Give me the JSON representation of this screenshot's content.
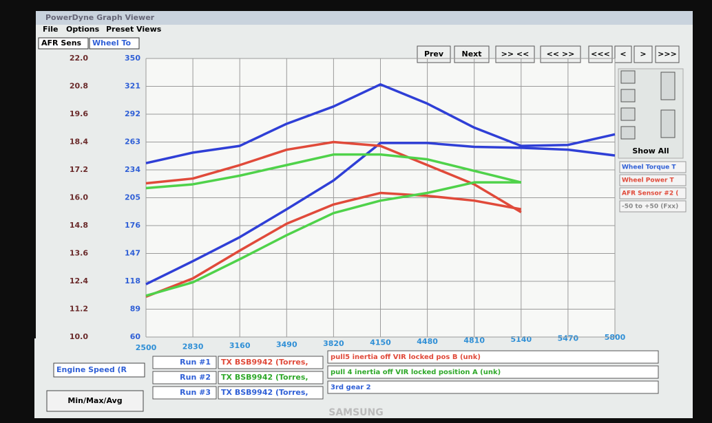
{
  "window": {
    "title": "PowerDyne Graph Viewer",
    "menu": [
      "File",
      "Options",
      "Preset Views"
    ],
    "tabs": [
      "AFR Sens",
      "Wheel To"
    ],
    "buttons": [
      "Prev",
      "Next",
      ">> <<",
      "<< >>",
      "<<<",
      "<",
      ">",
      ">>>"
    ],
    "show_all": "Show All",
    "legend": [
      "Wheel Torque T",
      "Wheel Power T",
      "AFR Sensor #2 (",
      "-50 to +50 (Fxx)"
    ],
    "x_axis_label": "Engine Speed (R",
    "mode": "Min/Max/Avg",
    "runs": [
      [
        "Run #1",
        "TX BSB9942 (Torres,",
        "pull5 inertia off VIR locked pos B (unk)"
      ],
      [
        "Run #2",
        "TX BSB9942 (Torres,",
        "pull 4 inertia off VIR locked position A (unk)"
      ],
      [
        "Run #3",
        "TX BSB9942 (Torres,",
        "3rd gear 2"
      ]
    ],
    "brand": "SAMSUNG"
  },
  "chart_data": {
    "type": "line",
    "x": [
      2500,
      2830,
      3160,
      3490,
      3820,
      4150,
      4480,
      4810,
      5140,
      5470,
      5800
    ],
    "xlim": [
      2500,
      5800
    ],
    "xticks": [
      2500,
      2830,
      3160,
      3490,
      3820,
      4150,
      4480,
      4810,
      5140,
      5470,
      5800
    ],
    "ylim": [
      60,
      350
    ],
    "yticks": [
      60,
      89,
      118,
      147,
      176,
      205,
      234,
      263,
      292,
      321,
      350
    ],
    "y2lim": [
      10,
      22
    ],
    "y2ticks": [
      {
        "value": 10,
        "label": "10.0"
      },
      11.2,
      12.4,
      13.6,
      14.8,
      {
        "value": 16,
        "label": "16.0"
      },
      17.2,
      18.4,
      19.6,
      20.8,
      {
        "value": 22,
        "label": "22.0"
      }
    ],
    "grid": true,
    "series": [
      {
        "color": "#2f3fd6",
        "values": [
          241,
          252,
          259,
          282,
          300,
          323,
          303,
          278,
          259,
          260,
          271
        ]
      },
      {
        "color": "#2f3fd6",
        "values": [
          115,
          139,
          164,
          193,
          223,
          262,
          262,
          258,
          257,
          255,
          249
        ]
      },
      {
        "color": "#e04a3a",
        "values": [
          220,
          225,
          239,
          255,
          263,
          259,
          239,
          219,
          190,
          null,
          null
        ]
      },
      {
        "color": "#e04a3a",
        "values": [
          102,
          121,
          150,
          178,
          198,
          210,
          207,
          202,
          193,
          null,
          null
        ]
      },
      {
        "color": "#4fd24a",
        "values": [
          215,
          219,
          228,
          239,
          250,
          250,
          245,
          233,
          221,
          null,
          null
        ]
      },
      {
        "color": "#4fd24a",
        "values": [
          103,
          117,
          141,
          166,
          189,
          202,
          210,
          221,
          221,
          null,
          null
        ]
      }
    ]
  }
}
